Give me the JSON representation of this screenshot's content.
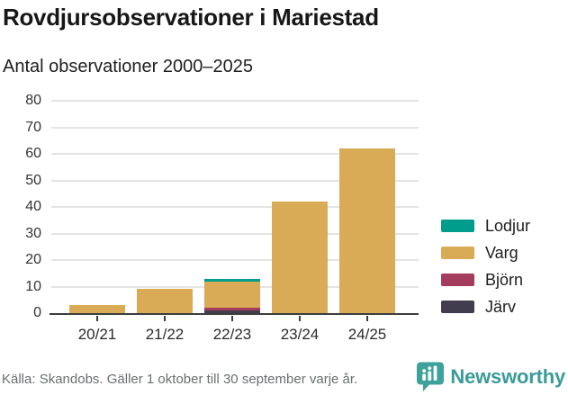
{
  "header": {
    "title": "Rovdjursobservationer i Mariestad",
    "subtitle": "Antal observationer 2000–2025"
  },
  "footer": {
    "source": "Källa: Skandobs. Gäller 1 oktober till 30 september varje år.",
    "brand": "Newsworthy"
  },
  "icons": {
    "brand_logo": "newsworthy-speech-bubble-bar-chart-icon"
  },
  "colors": {
    "lodjur": "#009c8c",
    "varg": "#d9ab57",
    "bjorn": "#a43c5e",
    "jarv": "#423d4e",
    "axis": "#3d3d3d",
    "grid": "#e4e4e4",
    "brand_teal": "#3ea19c",
    "brand_text": "#3a9b98"
  },
  "chart_data": {
    "type": "bar",
    "stacked": true,
    "title": "Rovdjursobservationer i Mariestad",
    "subtitle": "Antal observationer 2000–2025",
    "categories": [
      "20/21",
      "21/22",
      "22/23",
      "23/24",
      "24/25"
    ],
    "series": [
      {
        "name": "Lodjur",
        "color": "#009c8c",
        "values": [
          0,
          0,
          1,
          0,
          0
        ]
      },
      {
        "name": "Varg",
        "color": "#d9ab57",
        "values": [
          3,
          9,
          10,
          42,
          62
        ]
      },
      {
        "name": "Björn",
        "color": "#a43c5e",
        "values": [
          0,
          0,
          1,
          0,
          0
        ]
      },
      {
        "name": "Järv",
        "color": "#423d4e",
        "values": [
          0,
          0,
          1,
          0,
          0
        ]
      }
    ],
    "totals": [
      3,
      9,
      13,
      42,
      62
    ],
    "stack_order_bottom_to_top": [
      "Järv",
      "Björn",
      "Varg",
      "Lodjur"
    ],
    "xlabel": "",
    "ylabel": "",
    "ylim": [
      0,
      80
    ],
    "yticks": [
      0,
      10,
      20,
      30,
      40,
      50,
      60,
      70,
      80
    ],
    "grid": true,
    "legend_position": "right"
  }
}
